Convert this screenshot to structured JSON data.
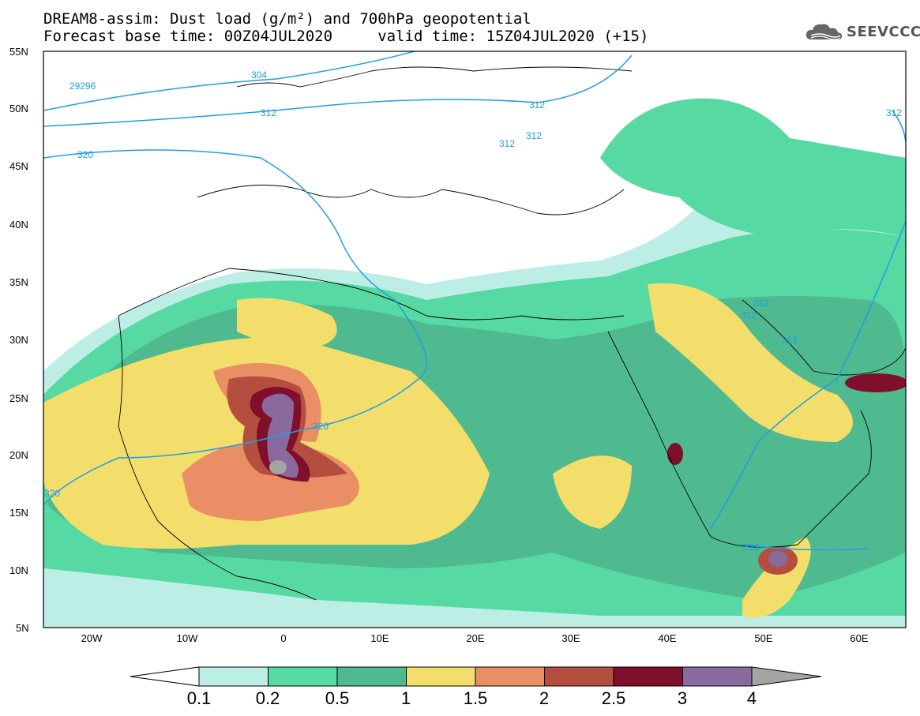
{
  "header": {
    "title_line1": "DREAM8-assim: Dust load (g/m²) and 700hPa geopotential",
    "title_line2": "Forecast base time: 00Z04JUL2020     valid time: 15Z04JUL2020 (+15)"
  },
  "logo": {
    "text": "SEEVCCC",
    "icon": "cloud-logo-icon"
  },
  "map": {
    "lat_labels": [
      "55N",
      "50N",
      "45N",
      "40N",
      "35N",
      "30N",
      "25N",
      "20N",
      "15N",
      "10N",
      "5N"
    ],
    "lon_labels": [
      "20W",
      "10W",
      "0",
      "10E",
      "20E",
      "30E",
      "40E",
      "50E",
      "60E"
    ],
    "contour_labels": [
      "29296",
      "304",
      "312",
      "312",
      "312",
      "312",
      "320",
      "320",
      "320",
      "312",
      "312",
      "312",
      "312",
      "312"
    ],
    "fill_color_dust_max": "#8b6aa0"
  },
  "colorbar": {
    "labels": [
      "0.1",
      "0.2",
      "0.5",
      "1",
      "1.5",
      "2",
      "2.5",
      "3",
      "4"
    ],
    "colors": [
      "#ffffff",
      "#bdeee6",
      "#57d9a3",
      "#4fba8f",
      "#f3de6b",
      "#ea8e66",
      "#b44f40",
      "#800f2b",
      "#8a6a9e",
      "#a4a4a4"
    ]
  }
}
